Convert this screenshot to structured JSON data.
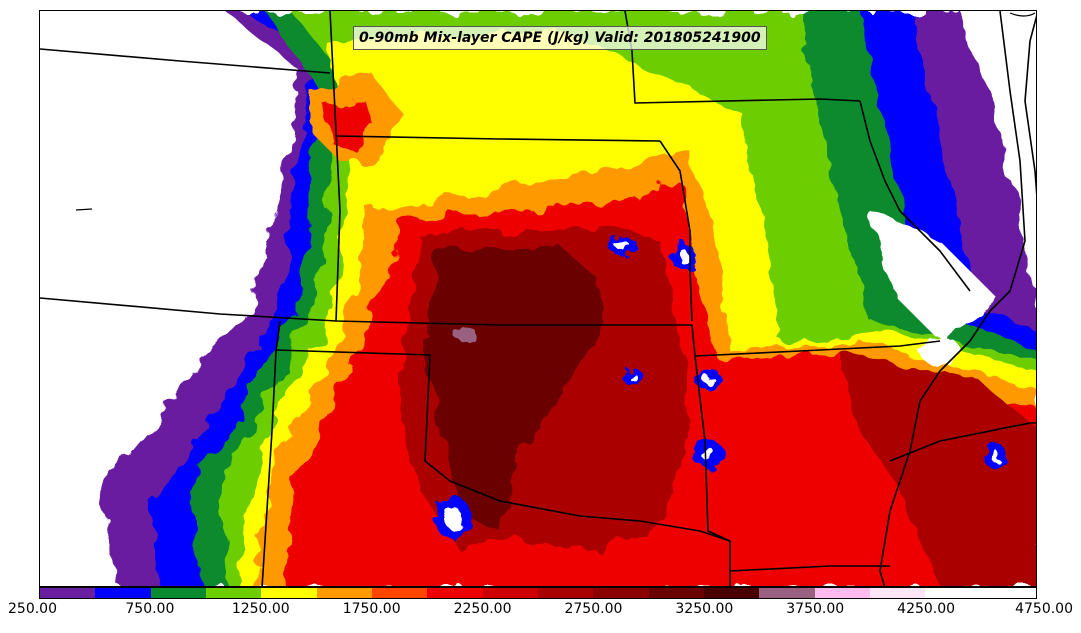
{
  "title": "0-90mb Mix-layer CAPE (J/kg) Valid: 201805241900",
  "colorbar": {
    "colors": [
      "#6a1fa0",
      "#0000ff",
      "#0a8a2e",
      "#6ccd00",
      "#ffff00",
      "#ff9900",
      "#ff4400",
      "#ee0000",
      "#cc0000",
      "#aa0000",
      "#8a0000",
      "#6a0000",
      "#4a0000",
      "#996080",
      "#ffbbee",
      "#ffe6f7",
      "#ffffff",
      "#ffffff"
    ],
    "tick_labels": [
      "250.00",
      "750.00",
      "1250.00",
      "1750.00",
      "2250.00",
      "2750.00",
      "3250.00",
      "3750.00",
      "4250.00",
      "4750.00"
    ]
  }
}
